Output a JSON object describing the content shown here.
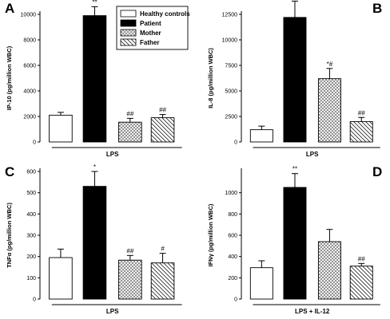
{
  "legend": {
    "entries": [
      {
        "label": "Healthy controls",
        "fill": "white"
      },
      {
        "label": "Patient",
        "fill": "black"
      },
      {
        "label": "Mother",
        "fill": "crosshatch"
      },
      {
        "label": "Father",
        "fill": "diagonal"
      }
    ]
  },
  "chart_data": [
    {
      "type": "bar",
      "panel": "A",
      "ylabel": "IP-10 (pg/million WBC)",
      "xlabel": "LPS",
      "ylim": [
        0,
        10000
      ],
      "yticks": [
        0,
        2000,
        4000,
        6000,
        8000,
        10000
      ],
      "ytick_labels": [
        "0",
        "2000",
        "4000",
        "6000",
        "8000",
        "10000"
      ],
      "categories": [
        "Healthy controls",
        "Patient",
        "Mother",
        "Father"
      ],
      "values": [
        2100,
        9900,
        1550,
        1900
      ],
      "errors": [
        220,
        700,
        300,
        250
      ],
      "annotations": [
        "",
        "**",
        "##",
        "##"
      ]
    },
    {
      "type": "bar",
      "panel": "B",
      "ylabel": "IL-8 (pg/million WBC)",
      "xlabel": "LPS",
      "ylim": [
        0,
        12500
      ],
      "yticks": [
        0,
        2500,
        5000,
        7500,
        10000,
        12500
      ],
      "ytick_labels": [
        "0",
        "2500",
        "5000",
        "7500",
        "10000",
        "12500"
      ],
      "categories": [
        "Healthy controls",
        "Patient",
        "Mother",
        "Father"
      ],
      "values": [
        1200,
        12200,
        6200,
        2000
      ],
      "errors": [
        350,
        1600,
        1000,
        400
      ],
      "annotations": [
        "",
        "**",
        "*#",
        "##"
      ]
    },
    {
      "type": "bar",
      "panel": "C",
      "ylabel": "TNFα (pg/million WBC)",
      "xlabel": "LPS",
      "ylim": [
        0,
        600
      ],
      "yticks": [
        0,
        100,
        200,
        300,
        400,
        500,
        600
      ],
      "ytick_labels": [
        "0",
        "100",
        "200",
        "300",
        "400",
        "500",
        "600"
      ],
      "categories": [
        "Healthy controls",
        "Patient",
        "Mother",
        "Father"
      ],
      "values": [
        195,
        530,
        183,
        170
      ],
      "errors": [
        40,
        70,
        22,
        45
      ],
      "annotations": [
        "",
        "*",
        "##",
        "#"
      ]
    },
    {
      "type": "bar",
      "panel": "D",
      "ylabel": "IFNγ (pg/million WBC)",
      "xlabel": "LPS + IL-12",
      "ylim": [
        0,
        1200
      ],
      "yticks": [
        0,
        200,
        400,
        600,
        800,
        1000
      ],
      "ytick_labels": [
        "0",
        "200",
        "400",
        "600",
        "800",
        "1000"
      ],
      "categories": [
        "Healthy controls",
        "Patient",
        "Mother",
        "Father"
      ],
      "values": [
        295,
        1050,
        540,
        310
      ],
      "errors": [
        65,
        130,
        115,
        25
      ],
      "annotations": [
        "",
        "**",
        "",
        "##"
      ]
    }
  ]
}
